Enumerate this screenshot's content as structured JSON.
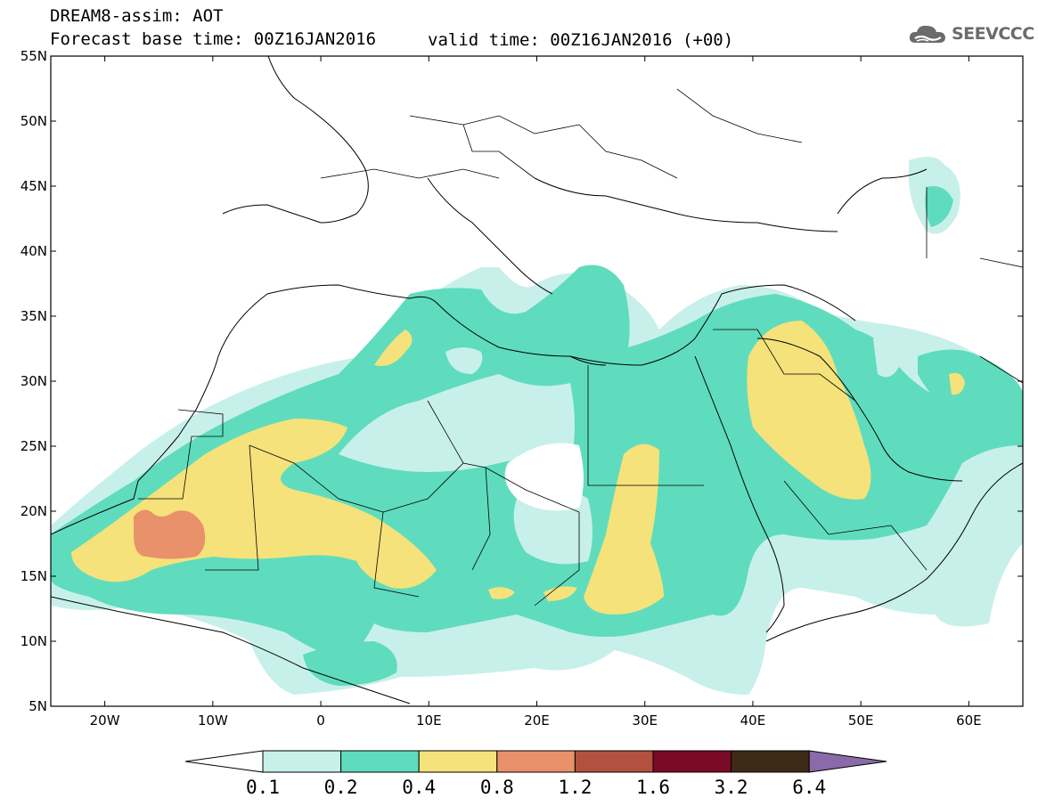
{
  "header": {
    "title_line1": "DREAM8-assim: AOT",
    "title_line2": "Forecast base time: 00Z16JAN2016",
    "valid_time": "valid time: 00Z16JAN2016 (+00)"
  },
  "logo": {
    "icon": "cloud-icon",
    "text": "SEEVCCC"
  },
  "map": {
    "lon_range": [
      -25,
      65
    ],
    "lat_range": [
      5,
      55
    ],
    "lat_ticks": [
      "55N",
      "50N",
      "45N",
      "40N",
      "35N",
      "30N",
      "25N",
      "20N",
      "15N",
      "10N",
      "5N"
    ],
    "lon_ticks": [
      "20W",
      "10W",
      "0",
      "10E",
      "20E",
      "30E",
      "40E",
      "50E",
      "60E"
    ]
  },
  "colorbar": {
    "labels": [
      "0.1",
      "0.2",
      "0.4",
      "0.8",
      "1.2",
      "1.6",
      "3.2",
      "6.4"
    ],
    "colors": [
      "#c8f0ea",
      "#5fdcbd",
      "#f5e27a",
      "#e8916a",
      "#b2513f",
      "#7a0a27",
      "#3e2a17"
    ],
    "extend_low_color": "#ffffff",
    "extend_high_color": "#8a6aa8"
  },
  "legend_colors": {
    "land_border": "#000000",
    "aot_0_1": "#c8f0ea",
    "aot_0_2": "#5fdcbd",
    "aot_0_4": "#f5e27a",
    "aot_0_8": "#e8916a"
  }
}
